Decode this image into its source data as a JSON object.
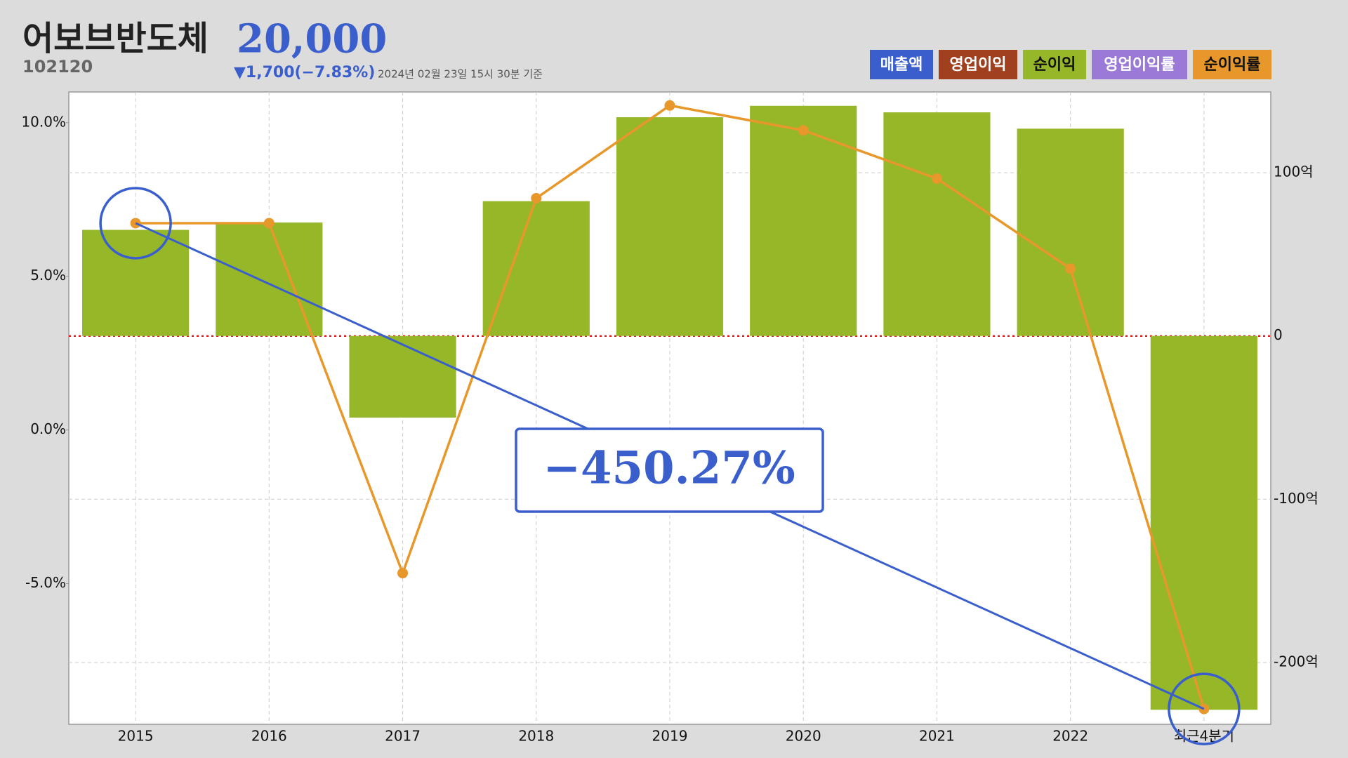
{
  "header": {
    "title": "어보브반도체",
    "price": "20,000",
    "code": "102120",
    "change": "▼1,700(−7.83%)",
    "timestamp": "2024년 02월 23일 15시 30분 기준"
  },
  "chart_data": {
    "type": "bar",
    "categories": [
      "2015",
      "2016",
      "2017",
      "2018",
      "2019",
      "2020",
      "2021",
      "2022",
      "최근4분기"
    ],
    "series": [
      {
        "name": "순이익",
        "type": "bar",
        "axis": "y2",
        "color": "#96b728",
        "values": [
          65,
          69.5,
          -50,
          82.6,
          134,
          141,
          137,
          127,
          -229
        ]
      },
      {
        "name": "순이익률",
        "type": "line",
        "axis": "y",
        "color": "#e8972a",
        "values": [
          6.73,
          6.73,
          -4.66,
          7.54,
          10.56,
          9.75,
          8.18,
          5.25,
          -9.08
        ]
      }
    ],
    "inactive_series": [
      {
        "name": "매출액",
        "color": "#3a5fcd"
      },
      {
        "name": "영업이익",
        "color": "#a0401e"
      },
      {
        "name": "영업이익률",
        "color": "#9a7ad6"
      }
    ],
    "ylim": [
      -9.58,
      11.0
    ],
    "yticks": [
      {
        "value": 10,
        "label": "10.0%"
      },
      {
        "value": 5,
        "label": "5.0%"
      },
      {
        "value": 0,
        "label": "0.0%"
      },
      {
        "value": -5,
        "label": "-5.0%"
      }
    ],
    "y2lim": [
      -237.9,
      149.5
    ],
    "y2ticks": [
      {
        "value": 100,
        "label": "100억"
      },
      0,
      {
        "value": -100,
        "label": "-100억"
      },
      {
        "value": -200,
        "label": "-200억"
      }
    ],
    "grid": true,
    "annotation": "−450.27%"
  }
}
